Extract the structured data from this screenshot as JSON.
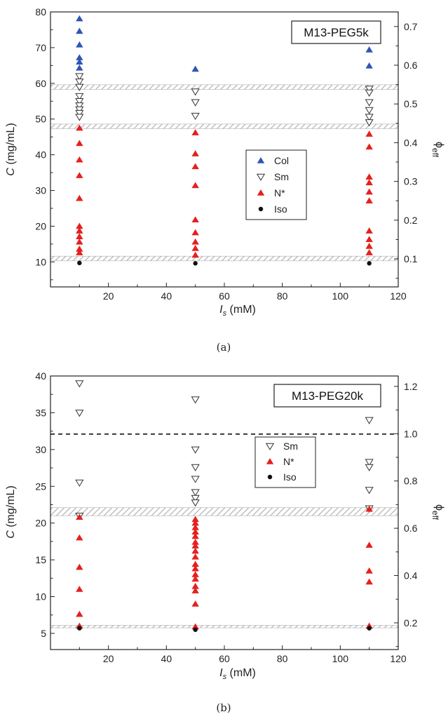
{
  "colors": {
    "col": "#2f55b4",
    "sm_stroke": "#333333",
    "nstar": "#e5201e",
    "iso": "#111111",
    "band": "#c8c8c8",
    "dashed": "#111111"
  },
  "chart_data": [
    {
      "id": "a",
      "type": "scatter",
      "caption": "(a)",
      "title": "M13-PEG5k",
      "xlabel_main": "I",
      "xlabel_sub": "s",
      "xlabel_unit": " (mM)",
      "ylabel_main": "C",
      "ylabel_unit": " (mg/mL)",
      "y2label_main": "ϕ",
      "y2label_sub": "eff",
      "xlim": [
        0,
        120
      ],
      "ylim": [
        3,
        80
      ],
      "xticks": [
        20,
        40,
        60,
        80,
        100,
        120
      ],
      "yticks": [
        10,
        20,
        30,
        40,
        50,
        60,
        70,
        80
      ],
      "y2_factor": 0.00922,
      "y2ticks": [
        0.1,
        0.2,
        0.3,
        0.4,
        0.5,
        0.6,
        0.7
      ],
      "y2tick_labels": [
        "0.1",
        "0.2",
        "0.3",
        "0.4",
        "0.5",
        "0.6",
        "0.7"
      ],
      "bands": [
        [
          58.3,
          59.6
        ],
        [
          47.3,
          48.6
        ],
        [
          10.3,
          11.6
        ]
      ],
      "dashed_line": null,
      "legend_position": "center-right",
      "legend": [
        {
          "key": "col",
          "label": "Col"
        },
        {
          "key": "sm",
          "label": "Sm"
        },
        {
          "key": "nstar",
          "label": "N*"
        },
        {
          "key": "iso",
          "label": "Iso"
        }
      ],
      "series": [
        {
          "key": "col",
          "name": "Col",
          "marker": "triangle-up-filled",
          "points": [
            [
              10,
              78.1
            ],
            [
              10,
              74.6
            ],
            [
              10,
              70.8
            ],
            [
              10,
              67.2
            ],
            [
              10,
              66.0
            ],
            [
              10,
              64.3
            ],
            [
              50,
              64.0
            ],
            [
              110,
              69.4
            ],
            [
              110,
              64.9
            ]
          ]
        },
        {
          "key": "sm",
          "name": "Sm",
          "marker": "triangle-down-open",
          "points": [
            [
              10,
              62.0
            ],
            [
              10,
              60.5
            ],
            [
              10,
              59.0
            ],
            [
              10,
              56.4
            ],
            [
              10,
              55.0
            ],
            [
              10,
              53.8
            ],
            [
              10,
              52.7
            ],
            [
              10,
              51.7
            ],
            [
              10,
              50.6
            ],
            [
              50,
              57.7
            ],
            [
              50,
              54.7
            ],
            [
              50,
              50.9
            ],
            [
              110,
              58.5
            ],
            [
              110,
              57.4
            ],
            [
              110,
              54.7
            ],
            [
              110,
              52.5
            ],
            [
              110,
              50.6
            ],
            [
              110,
              49.1
            ]
          ]
        },
        {
          "key": "nstar",
          "name": "N*",
          "marker": "triangle-up-filled",
          "points": [
            [
              10,
              47.5
            ],
            [
              10,
              43.2
            ],
            [
              10,
              38.6
            ],
            [
              10,
              34.2
            ],
            [
              10,
              27.8
            ],
            [
              10,
              20.0
            ],
            [
              10,
              18.7
            ],
            [
              10,
              17.1
            ],
            [
              10,
              15.6
            ],
            [
              10,
              13.6
            ],
            [
              10,
              12.6
            ],
            [
              50,
              46.2
            ],
            [
              50,
              40.3
            ],
            [
              50,
              36.7
            ],
            [
              50,
              31.4
            ],
            [
              50,
              21.8
            ],
            [
              50,
              18.2
            ],
            [
              50,
              15.6
            ],
            [
              50,
              13.8
            ],
            [
              50,
              11.9
            ],
            [
              110,
              45.8
            ],
            [
              110,
              42.2
            ],
            [
              110,
              33.8
            ],
            [
              110,
              32.2
            ],
            [
              110,
              29.6
            ],
            [
              110,
              27.1
            ],
            [
              110,
              18.7
            ],
            [
              110,
              16.3
            ],
            [
              110,
              14.4
            ],
            [
              110,
              12.6
            ]
          ]
        },
        {
          "key": "iso",
          "name": "Iso",
          "marker": "circle-filled",
          "points": [
            [
              10,
              9.7
            ],
            [
              50,
              9.6
            ],
            [
              110,
              9.6
            ]
          ]
        }
      ]
    },
    {
      "id": "b",
      "type": "scatter",
      "caption": "(b)",
      "title": "M13-PEG20k",
      "xlabel_main": "I",
      "xlabel_sub": "s",
      "xlabel_unit": " (mM)",
      "ylabel_main": "C",
      "ylabel_unit": " (mg/mL)",
      "y2label_main": "ϕ",
      "y2label_sub": "eff",
      "xlim": [
        0,
        120
      ],
      "ylim": [
        2.8,
        40
      ],
      "xticks": [
        20,
        40,
        60,
        80,
        100,
        120
      ],
      "yticks": [
        5,
        10,
        15,
        20,
        25,
        30,
        35,
        40
      ],
      "y2_factor": 0.0311,
      "y2ticks": [
        0.2,
        0.4,
        0.6,
        0.8,
        1.0,
        1.2
      ],
      "y2tick_labels": [
        "0.2",
        "0.4",
        "0.6",
        "0.8",
        "1.0",
        "1.2"
      ],
      "bands": [
        [
          21.0,
          22.1
        ],
        [
          5.75,
          6.1
        ]
      ],
      "dashed_line": 32.1,
      "legend_position": "upper-right",
      "legend": [
        {
          "key": "sm",
          "label": "Sm"
        },
        {
          "key": "nstar",
          "label": "N*"
        },
        {
          "key": "iso",
          "label": "Iso"
        }
      ],
      "series": [
        {
          "key": "sm",
          "name": "Sm",
          "marker": "triangle-down-open",
          "points": [
            [
              10,
              39.0
            ],
            [
              10,
              35.0
            ],
            [
              10,
              25.5
            ],
            [
              10,
              21.0
            ],
            [
              50,
              36.8
            ],
            [
              50,
              30.0
            ],
            [
              50,
              27.6
            ],
            [
              50,
              26.0
            ],
            [
              50,
              24.2
            ],
            [
              50,
              23.4
            ],
            [
              50,
              22.8
            ],
            [
              110,
              34.0
            ],
            [
              110,
              28.3
            ],
            [
              110,
              27.6
            ],
            [
              110,
              24.5
            ],
            [
              110,
              22.0
            ]
          ]
        },
        {
          "key": "nstar",
          "name": "N*",
          "marker": "triangle-up-filled",
          "points": [
            [
              10,
              20.8
            ],
            [
              10,
              18.0
            ],
            [
              10,
              14.0
            ],
            [
              10,
              11.0
            ],
            [
              10,
              7.6
            ],
            [
              10,
              6.0
            ],
            [
              50,
              20.5
            ],
            [
              50,
              20.0
            ],
            [
              50,
              19.4
            ],
            [
              50,
              18.8
            ],
            [
              50,
              18.2
            ],
            [
              50,
              17.4
            ],
            [
              50,
              16.9
            ],
            [
              50,
              16.2
            ],
            [
              50,
              15.4
            ],
            [
              50,
              14.4
            ],
            [
              50,
              13.8
            ],
            [
              50,
              13.0
            ],
            [
              50,
              12.4
            ],
            [
              50,
              11.4
            ],
            [
              50,
              10.8
            ],
            [
              50,
              9.0
            ],
            [
              50,
              5.9
            ],
            [
              110,
              21.9
            ],
            [
              110,
              17.0
            ],
            [
              110,
              13.5
            ],
            [
              110,
              12.0
            ],
            [
              110,
              6.0
            ]
          ]
        },
        {
          "key": "iso",
          "name": "Iso",
          "marker": "circle-filled",
          "points": [
            [
              10,
              5.7
            ],
            [
              50,
              5.5
            ],
            [
              110,
              5.7
            ]
          ]
        }
      ]
    }
  ]
}
